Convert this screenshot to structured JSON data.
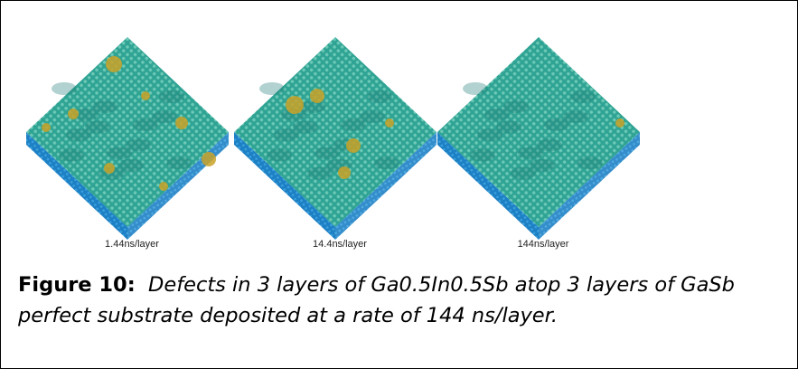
{
  "figure": {
    "panels": [
      {
        "label": "1.44ns/layer"
      },
      {
        "label": "14.4ns/layer"
      },
      {
        "label": "144ns/layer"
      }
    ],
    "caption": {
      "label": "Figure 10:",
      "text": "Defects in 3 layers of Ga0.5In0.5Sb atop 3 layers of GaSb perfect substrate deposited at a rate of 144 ns/layer."
    }
  }
}
